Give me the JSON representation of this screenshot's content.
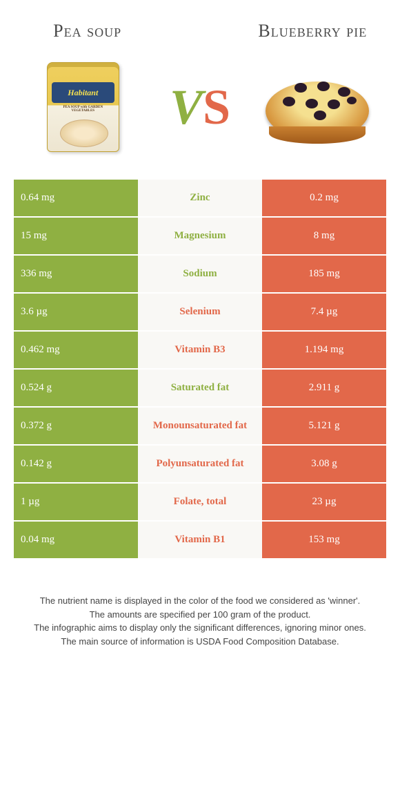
{
  "foods": {
    "left": {
      "name": "Pea soup",
      "color": "#8fb042",
      "can_brand": "Habitant",
      "can_sub": "PEA SOUP with GARDEN VEGETABLES"
    },
    "right": {
      "name": "Blueberry pie",
      "color": "#e2684a"
    }
  },
  "vs": {
    "v": "V",
    "s": "S"
  },
  "colors": {
    "green": "#8fb042",
    "orange": "#e2684a",
    "row_bg": "#f9f8f5",
    "page_bg": "#ffffff"
  },
  "rows": [
    {
      "left": "0.64 mg",
      "nutrient": "Zinc",
      "right": "0.2 mg",
      "winner": "left"
    },
    {
      "left": "15 mg",
      "nutrient": "Magnesium",
      "right": "8 mg",
      "winner": "left"
    },
    {
      "left": "336 mg",
      "nutrient": "Sodium",
      "right": "185 mg",
      "winner": "left"
    },
    {
      "left": "3.6 µg",
      "nutrient": "Selenium",
      "right": "7.4 µg",
      "winner": "right"
    },
    {
      "left": "0.462 mg",
      "nutrient": "Vitamin B3",
      "right": "1.194 mg",
      "winner": "right"
    },
    {
      "left": "0.524 g",
      "nutrient": "Saturated fat",
      "right": "2.911 g",
      "winner": "left"
    },
    {
      "left": "0.372 g",
      "nutrient": "Monounsaturated fat",
      "right": "5.121 g",
      "winner": "right"
    },
    {
      "left": "0.142 g",
      "nutrient": "Polyunsaturated fat",
      "right": "3.08 g",
      "winner": "right"
    },
    {
      "left": "1 µg",
      "nutrient": "Folate, total",
      "right": "23 µg",
      "winner": "right"
    },
    {
      "left": "0.04 mg",
      "nutrient": "Vitamin B1",
      "right": "153 mg",
      "winner": "right"
    }
  ],
  "footer": [
    "The nutrient name is displayed in the color of the food we considered as 'winner'.",
    "The amounts are specified per 100 gram of the product.",
    "The infographic aims to display only the significant differences, ignoring minor ones.",
    "The main source of information is USDA Food Composition Database."
  ]
}
